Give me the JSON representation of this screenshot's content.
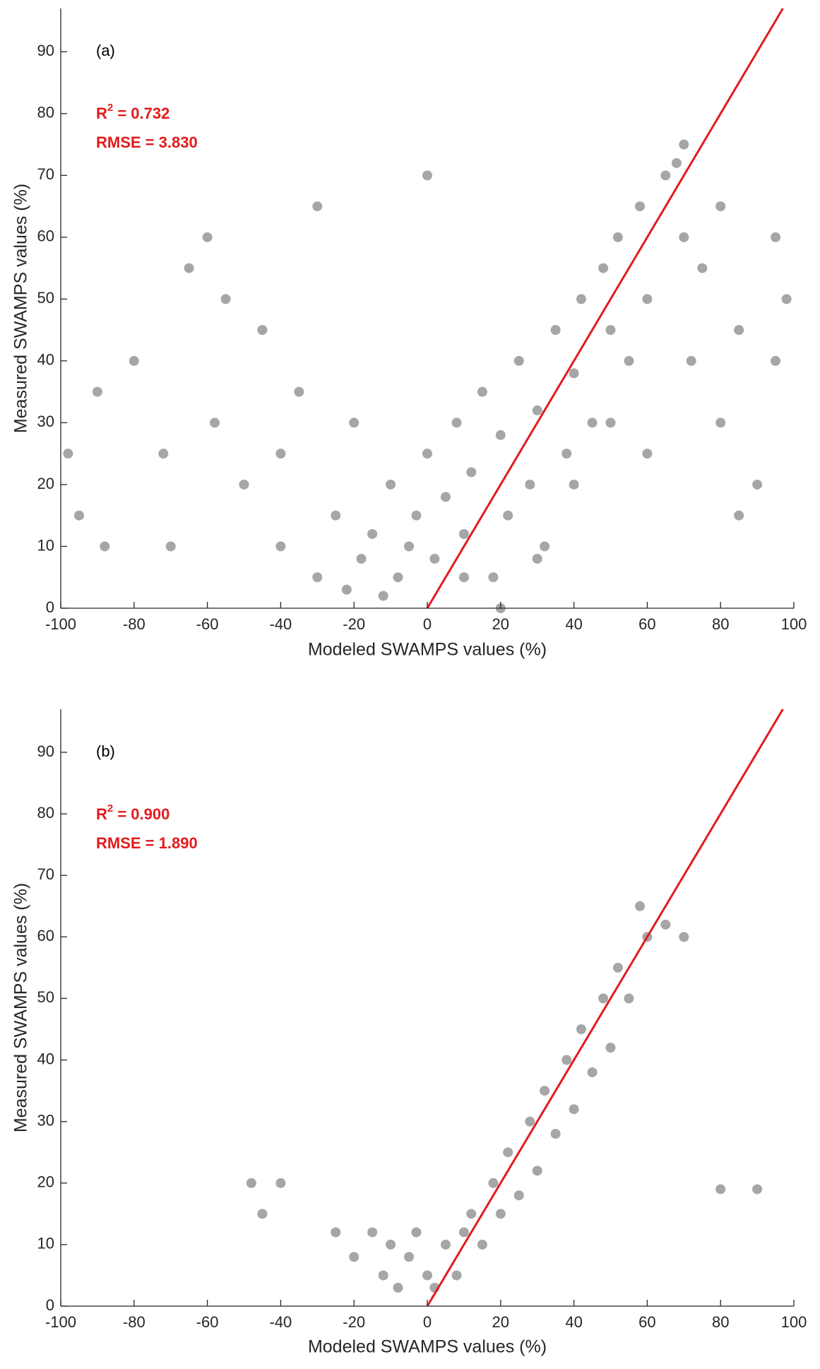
{
  "chart_data": [
    {
      "type": "scatter",
      "annotation": "(a)",
      "stats": [
        {
          "text": "R",
          "sup": "2",
          "rest": " = 0.732"
        },
        {
          "text": "RMSE = 3.830"
        }
      ],
      "xlabel": "Modeled SWAMPS values (%)",
      "ylabel": "Measured SWAMPS values  (%)",
      "xlim": [
        -100,
        100
      ],
      "xticks": [
        -100,
        -80,
        -60,
        -40,
        -20,
        0,
        20,
        40,
        60,
        80,
        100
      ],
      "ylim": [
        0,
        97
      ],
      "yticks": [
        0,
        10,
        20,
        30,
        40,
        50,
        60,
        70,
        80,
        90
      ],
      "color": "#000000",
      "x": [
        -95,
        -88,
        -80,
        -72,
        -65,
        -58,
        -50,
        -45,
        -40,
        -35,
        -30,
        -25,
        -22,
        -18,
        -15,
        -12,
        -10,
        -8,
        -5,
        -3,
        0,
        2,
        5,
        8,
        10,
        12,
        15,
        18,
        20,
        22,
        25,
        28,
        30,
        32,
        35,
        38,
        40,
        42,
        45,
        48,
        50,
        52,
        55,
        58,
        60,
        65,
        68,
        70,
        72,
        75,
        80,
        85,
        90,
        95,
        -90,
        -70,
        -55,
        -40,
        -20,
        10,
        30,
        50,
        70,
        85,
        95,
        -60,
        -30,
        0,
        20,
        40,
        60,
        80,
        98,
        -98
      ],
      "y": [
        15,
        10,
        40,
        25,
        55,
        30,
        20,
        45,
        10,
        35,
        5,
        15,
        3,
        8,
        12,
        2,
        20,
        5,
        10,
        15,
        25,
        8,
        18,
        30,
        12,
        22,
        35,
        5,
        28,
        15,
        40,
        20,
        32,
        10,
        45,
        25,
        38,
        50,
        30,
        55,
        45,
        60,
        40,
        65,
        50,
        70,
        72,
        60,
        40,
        55,
        30,
        45,
        20,
        60,
        35,
        10,
        50,
        25,
        30,
        5,
        8,
        30,
        75,
        15,
        40,
        60,
        65,
        70,
        0,
        20,
        25,
        65,
        50,
        25
      ],
      "fit_line": {
        "x": [
          0,
          97
        ],
        "y": [
          0,
          97
        ],
        "color": "#e41a1c"
      }
    },
    {
      "type": "scatter",
      "annotation": "(b)",
      "stats": [
        {
          "text": "R",
          "sup": "2",
          "rest": " = 0.900"
        },
        {
          "text": "RMSE = 1.890"
        }
      ],
      "xlabel": "Modeled SWAMPS values (%)",
      "ylabel": "Measured SWAMPS values  (%)",
      "xlim": [
        -100,
        100
      ],
      "xticks": [
        -100,
        -80,
        -60,
        -40,
        -20,
        0,
        20,
        40,
        60,
        80,
        100
      ],
      "ylim": [
        0,
        97
      ],
      "yticks": [
        0,
        10,
        20,
        30,
        40,
        50,
        60,
        70,
        80,
        90
      ],
      "color": "#000000",
      "x": [
        -48,
        -45,
        -40,
        -25,
        -20,
        -15,
        -12,
        -10,
        -8,
        -5,
        -3,
        0,
        2,
        5,
        8,
        10,
        12,
        15,
        18,
        20,
        22,
        25,
        28,
        30,
        32,
        35,
        38,
        40,
        42,
        45,
        48,
        50,
        52,
        55,
        58,
        60,
        65,
        70,
        80,
        90
      ],
      "y": [
        20,
        15,
        20,
        12,
        8,
        12,
        5,
        10,
        3,
        8,
        12,
        5,
        3,
        10,
        5,
        12,
        15,
        10,
        20,
        15,
        25,
        18,
        30,
        22,
        35,
        28,
        40,
        32,
        45,
        38,
        50,
        42,
        55,
        50,
        65,
        60,
        62,
        60,
        19,
        19
      ],
      "fit_line": {
        "x": [
          0,
          97
        ],
        "y": [
          0,
          97
        ],
        "color": "#e41a1c"
      }
    }
  ]
}
